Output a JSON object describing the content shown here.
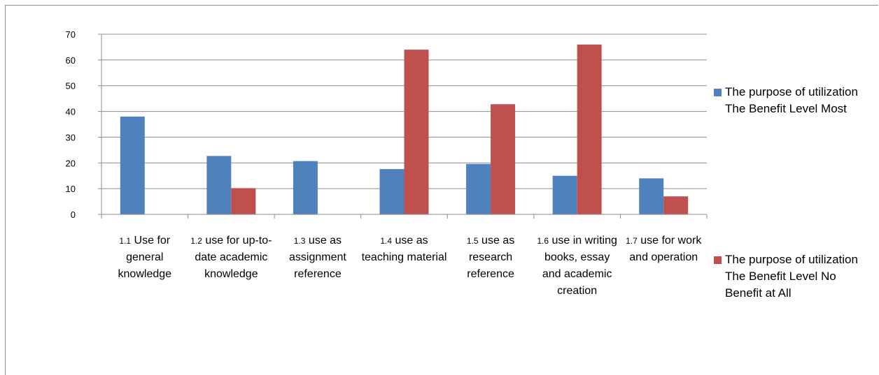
{
  "chart_data": {
    "type": "bar",
    "categories": [
      {
        "num": "1.1",
        "text": "Use for general knowledge"
      },
      {
        "num": "1.2",
        "text": "use for up-to-date academic knowledge"
      },
      {
        "num": "1.3",
        "text": "use as assignment reference"
      },
      {
        "num": "1.4",
        "text": "use as teaching material"
      },
      {
        "num": "1.5",
        "text": "use as research reference"
      },
      {
        "num": "1.6",
        "text": "use in writing books, essay and academic creation"
      },
      {
        "num": "1.7",
        "text": "use for work and operation"
      }
    ],
    "series": [
      {
        "name": "The purpose of utilization  The Benefit  Level Most",
        "color": "#4f81bd",
        "values": [
          38,
          22.7,
          20.7,
          17.6,
          19.6,
          15,
          14
        ]
      },
      {
        "name": "The purpose of utilization  The Benefit  Level No Benefit at All",
        "color": "#c0504d",
        "values": [
          0,
          10.2,
          0,
          64,
          42.8,
          66,
          7
        ]
      }
    ],
    "ylim": [
      0,
      70
    ],
    "yticks": [
      0,
      10,
      20,
      30,
      40,
      50,
      60,
      70
    ],
    "grid": true,
    "legend_position": "right"
  }
}
